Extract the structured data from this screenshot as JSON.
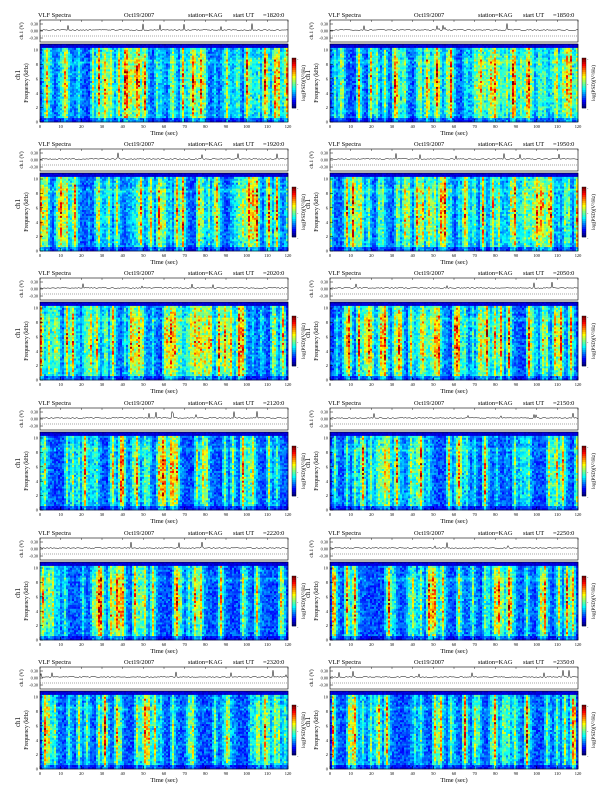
{
  "header_labels": {
    "product": "VLF Spectra",
    "date": "Oct19/2007",
    "station": "station=KAG",
    "start_ut": "start  UT"
  },
  "axis_labels": {
    "strip_y": "ch.1 (V)",
    "spectrogram_y": "Frequency (kHz)",
    "channel": "ch1",
    "colorbar": "log(PSD)(V²/Hz)",
    "x": "Time (sec)"
  },
  "colors": {
    "scale": [
      "#00007f",
      "#0000ff",
      "#0080ff",
      "#00ffff",
      "#80ff80",
      "#ffff00",
      "#ff8000",
      "#ff0000",
      "#7f0000"
    ],
    "background": "#00007f",
    "strip_line": "#000000"
  },
  "chart_data": [
    {
      "type": "heatmap",
      "start_ut": "=1820:0",
      "row": 0,
      "col": 0
    },
    {
      "type": "heatmap",
      "start_ut": "=1850:0",
      "row": 0,
      "col": 1
    },
    {
      "type": "heatmap",
      "start_ut": "=1920:0",
      "row": 1,
      "col": 0
    },
    {
      "type": "heatmap",
      "start_ut": "=1950:0",
      "row": 1,
      "col": 1
    },
    {
      "type": "heatmap",
      "start_ut": "=2020:0",
      "row": 2,
      "col": 0
    },
    {
      "type": "heatmap",
      "start_ut": "=2050:0",
      "row": 2,
      "col": 1
    },
    {
      "type": "heatmap",
      "start_ut": "=2120:0",
      "row": 3,
      "col": 0
    },
    {
      "type": "heatmap",
      "start_ut": "=2150:0",
      "row": 3,
      "col": 1
    },
    {
      "type": "heatmap",
      "start_ut": "=2220:0",
      "row": 4,
      "col": 0
    },
    {
      "type": "heatmap",
      "start_ut": "=2250:0",
      "row": 4,
      "col": 1
    },
    {
      "type": "heatmap",
      "start_ut": "=2320:0",
      "row": 5,
      "col": 0
    },
    {
      "type": "heatmap",
      "start_ut": "=2350:0",
      "row": 5,
      "col": 1
    }
  ],
  "shared_axes": {
    "x_ticks": [
      "0",
      "10",
      "20",
      "30",
      "40",
      "50",
      "60",
      "70",
      "80",
      "90",
      "100",
      "110",
      "120"
    ],
    "xlim": [
      0,
      120
    ],
    "strip_ticks": [
      "0.30",
      "0.00",
      "-0.30"
    ],
    "strip_ylim": [
      -0.3,
      0.3
    ],
    "freq_ticks": [
      "0",
      "2",
      "4",
      "6",
      "8",
      "10"
    ],
    "freq_ylim": [
      0,
      10
    ],
    "colorbar_ticks": [
      "-",
      "-",
      "-"
    ],
    "grid": false
  }
}
